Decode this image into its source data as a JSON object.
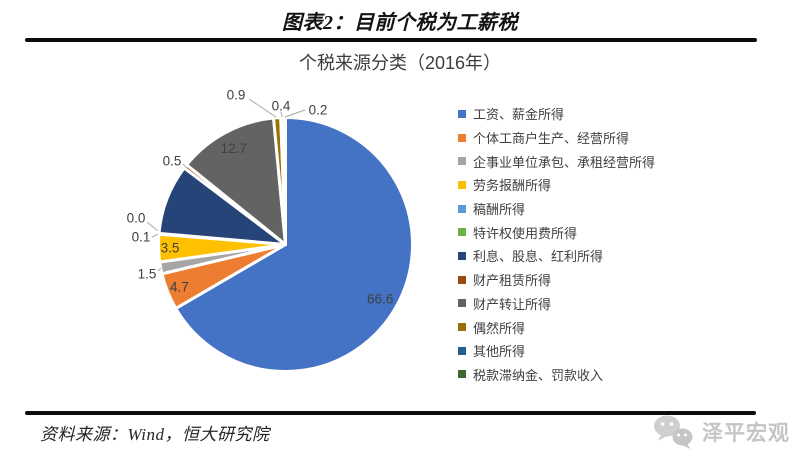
{
  "page": {
    "header_title": "图表2：目前个税为工薪税",
    "source_text": "资料来源：Wind，恒大研究院",
    "logo_text": "泽平宏观"
  },
  "chart_data": {
    "type": "pie",
    "title": "个税来源分类（2016年）",
    "unit": "percent",
    "legend_position": "right",
    "start_angle_deg": 0,
    "direction": "clockwise",
    "slices": [
      {
        "label": "工资、薪金所得",
        "value": 66.6,
        "value_label": "66.6",
        "color": "#4472C4"
      },
      {
        "label": "个体工商户生产、经营所得",
        "value": 4.7,
        "value_label": "4.7",
        "color": "#ED7D31"
      },
      {
        "label": "企事业单位承包、承租经营所得",
        "value": 1.5,
        "value_label": "1.5",
        "color": "#A5A5A5"
      },
      {
        "label": "劳务报酬所得",
        "value": 3.5,
        "value_label": "3.5",
        "color": "#FFC000"
      },
      {
        "label": "稿酬所得",
        "value": 0.1,
        "value_label": "0.1",
        "color": "#5B9BD5"
      },
      {
        "label": "特许权使用费所得",
        "value": 0.0,
        "value_label": "0.0",
        "color": "#70AD47"
      },
      {
        "label": "利息、股息、红利所得",
        "value": 8.9,
        "value_label": "",
        "color": "#264478"
      },
      {
        "label": "财产租赁所得",
        "value": 0.5,
        "value_label": "0.5",
        "color": "#9E480E"
      },
      {
        "label": "财产转让所得",
        "value": 12.7,
        "value_label": "12.7",
        "color": "#636363"
      },
      {
        "label": "偶然所得",
        "value": 0.9,
        "value_label": "0.9",
        "color": "#997300"
      },
      {
        "label": "其他所得",
        "value": 0.4,
        "value_label": "0.4",
        "color": "#255E91"
      },
      {
        "label": "税款滞纳金、罚款收入",
        "value": 0.2,
        "value_label": "0.2",
        "color": "#43682B"
      }
    ]
  }
}
